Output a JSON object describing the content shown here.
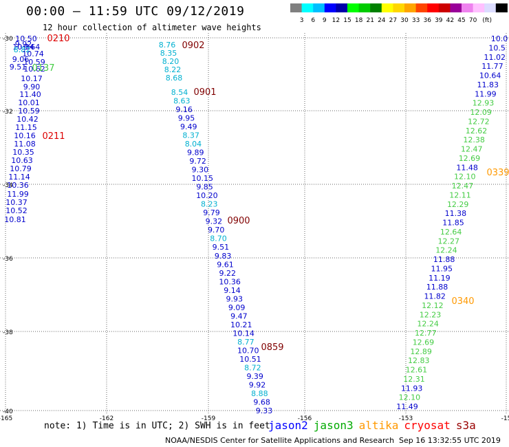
{
  "header": {
    "title": "00:00 – 11:59 UTC 09/12/2019",
    "subtitle": "12 hour collection of altimeter wave heights"
  },
  "colorbar": {
    "colors": [
      "#808080",
      "#00ffff",
      "#00bfff",
      "#0000ff",
      "#0000aa",
      "#00ff00",
      "#00cc00",
      "#008000",
      "#ffff00",
      "#ffd700",
      "#ffa500",
      "#ff4500",
      "#ff0000",
      "#cc0000",
      "#990099",
      "#ee82ee",
      "#ffc0ff",
      "#dcdcff",
      "#000000"
    ],
    "labels": [
      "3",
      "6",
      "9",
      "12",
      "15",
      "18",
      "21",
      "24",
      "27",
      "30",
      "33",
      "36",
      "39",
      "42",
      "45",
      "70",
      "(ft)"
    ]
  },
  "axes": {
    "lat_labels": [
      "-30",
      "-32",
      "-34",
      "-36",
      "-38",
      "-40"
    ],
    "lon_labels": [
      "-165",
      "-162",
      "-159",
      "-156",
      "-153",
      "-15"
    ]
  },
  "tracks": [
    {
      "name": "left-track",
      "points": [
        {
          "t": "10.50",
          "c": "blue"
        },
        {
          "t": "9.92",
          "c": "blue"
        },
        {
          "t": "10.34",
          "c": "blue"
        },
        {
          "t": "9.64",
          "c": "blue"
        },
        {
          "t": "8.82",
          "c": "cyan"
        },
        {
          "t": "10.74",
          "c": "blue"
        },
        {
          "t": "9.06",
          "c": "blue"
        },
        {
          "t": "10.59",
          "c": "blue"
        },
        {
          "t": "9.51",
          "c": "blue"
        },
        {
          "t": "10.62",
          "c": "blue"
        },
        {
          "t": "10.17",
          "c": "blue"
        },
        {
          "t": "9.90",
          "c": "blue"
        },
        {
          "t": "11.40",
          "c": "blue"
        },
        {
          "t": "10.01",
          "c": "blue"
        },
        {
          "t": "10.59",
          "c": "blue"
        },
        {
          "t": "10.42",
          "c": "blue"
        },
        {
          "t": "11.15",
          "c": "blue"
        },
        {
          "t": "10.16",
          "c": "blue"
        },
        {
          "t": "11.08",
          "c": "blue"
        },
        {
          "t": "10.35",
          "c": "blue"
        },
        {
          "t": "10.63",
          "c": "blue"
        },
        {
          "t": "10.79",
          "c": "blue"
        },
        {
          "t": "11.14",
          "c": "blue"
        },
        {
          "t": "10.36",
          "c": "blue"
        },
        {
          "t": "11.99",
          "c": "blue"
        },
        {
          "t": "10.37",
          "c": "blue"
        },
        {
          "t": "10.52",
          "c": "blue"
        },
        {
          "t": "10.81",
          "c": "blue"
        }
      ]
    },
    {
      "name": "middle-track",
      "points": [
        {
          "t": "8.76",
          "c": "cyan"
        },
        {
          "t": "8.35",
          "c": "cyan"
        },
        {
          "t": "8.20",
          "c": "cyan"
        },
        {
          "t": "8.22",
          "c": "cyan"
        },
        {
          "t": "8.68",
          "c": "cyan"
        },
        {
          "t": "8.54",
          "c": "cyan"
        },
        {
          "t": "8.63",
          "c": "cyan"
        },
        {
          "t": "9.16",
          "c": "blue"
        },
        {
          "t": "9.95",
          "c": "blue"
        },
        {
          "t": "9.49",
          "c": "blue"
        },
        {
          "t": "8.37",
          "c": "cyan"
        },
        {
          "t": "8.04",
          "c": "cyan"
        },
        {
          "t": "9.89",
          "c": "blue"
        },
        {
          "t": "9.72",
          "c": "blue"
        },
        {
          "t": "9.30",
          "c": "blue"
        },
        {
          "t": "10.15",
          "c": "blue"
        },
        {
          "t": "9.85",
          "c": "blue"
        },
        {
          "t": "10.20",
          "c": "blue"
        },
        {
          "t": "8.23",
          "c": "cyan"
        },
        {
          "t": "9.79",
          "c": "blue"
        },
        {
          "t": "9.32",
          "c": "blue"
        },
        {
          "t": "9.70",
          "c": "blue"
        },
        {
          "t": "8.70",
          "c": "cyan"
        },
        {
          "t": "9.51",
          "c": "blue"
        },
        {
          "t": "9.83",
          "c": "blue"
        },
        {
          "t": "9.61",
          "c": "blue"
        },
        {
          "t": "9.22",
          "c": "blue"
        },
        {
          "t": "10.36",
          "c": "blue"
        },
        {
          "t": "9.14",
          "c": "blue"
        },
        {
          "t": "9.93",
          "c": "blue"
        },
        {
          "t": "9.09",
          "c": "blue"
        },
        {
          "t": "9.47",
          "c": "blue"
        },
        {
          "t": "10.21",
          "c": "blue"
        },
        {
          "t": "10.14",
          "c": "blue"
        },
        {
          "t": "8.77",
          "c": "cyan"
        },
        {
          "t": "10.70",
          "c": "blue"
        },
        {
          "t": "10.51",
          "c": "blue"
        },
        {
          "t": "8.72",
          "c": "cyan"
        },
        {
          "t": "9.39",
          "c": "blue"
        },
        {
          "t": "9.92",
          "c": "blue"
        },
        {
          "t": "8.88",
          "c": "cyan"
        },
        {
          "t": "9.68",
          "c": "blue"
        },
        {
          "t": "9.33",
          "c": "blue"
        }
      ]
    },
    {
      "name": "right-track",
      "points": [
        {
          "t": "10.0",
          "c": "blue"
        },
        {
          "t": "10.5",
          "c": "blue"
        },
        {
          "t": "11.02",
          "c": "blue"
        },
        {
          "t": "11.77",
          "c": "blue"
        },
        {
          "t": "10.64",
          "c": "blue"
        },
        {
          "t": "11.83",
          "c": "blue"
        },
        {
          "t": "11.99",
          "c": "blue"
        },
        {
          "t": "12.93",
          "c": "green"
        },
        {
          "t": "12.09",
          "c": "green"
        },
        {
          "t": "12.72",
          "c": "green"
        },
        {
          "t": "12.62",
          "c": "green"
        },
        {
          "t": "12.38",
          "c": "green"
        },
        {
          "t": "12.47",
          "c": "green"
        },
        {
          "t": "12.69",
          "c": "green"
        },
        {
          "t": "11.48",
          "c": "blue"
        },
        {
          "t": "12.10",
          "c": "green"
        },
        {
          "t": "12.47",
          "c": "green"
        },
        {
          "t": "12.11",
          "c": "green"
        },
        {
          "t": "12.29",
          "c": "green"
        },
        {
          "t": "11.38",
          "c": "blue"
        },
        {
          "t": "11.85",
          "c": "blue"
        },
        {
          "t": "12.64",
          "c": "green"
        },
        {
          "t": "12.27",
          "c": "green"
        },
        {
          "t": "12.24",
          "c": "green"
        },
        {
          "t": "11.88",
          "c": "blue"
        },
        {
          "t": "11.95",
          "c": "blue"
        },
        {
          "t": "11.19",
          "c": "blue"
        },
        {
          "t": "11.88",
          "c": "blue"
        },
        {
          "t": "11.82",
          "c": "blue"
        },
        {
          "t": "12.12",
          "c": "green"
        },
        {
          "t": "12.23",
          "c": "green"
        },
        {
          "t": "12.24",
          "c": "green"
        },
        {
          "t": "12.77",
          "c": "green"
        },
        {
          "t": "12.69",
          "c": "green"
        },
        {
          "t": "12.89",
          "c": "green"
        },
        {
          "t": "12.83",
          "c": "green"
        },
        {
          "t": "12.61",
          "c": "green"
        },
        {
          "t": "12.31",
          "c": "green"
        },
        {
          "t": "11.93",
          "c": "blue"
        },
        {
          "t": "12.10",
          "c": "green"
        },
        {
          "t": "11.49",
          "c": "blue"
        }
      ]
    }
  ],
  "time_labels": [
    {
      "t": "0210",
      "c": "red"
    },
    {
      "t": "0137",
      "c": "green"
    },
    {
      "t": "0211",
      "c": "red"
    },
    {
      "t": "0902",
      "c": "darkred"
    },
    {
      "t": "0901",
      "c": "darkred"
    },
    {
      "t": "0900",
      "c": "darkred"
    },
    {
      "t": "0859",
      "c": "darkred"
    },
    {
      "t": "0339",
      "c": "orange"
    },
    {
      "t": "0340",
      "c": "orange"
    }
  ],
  "colors": {
    "blue": "#0000cc",
    "cyan": "#00b0d0",
    "green": "#44cc44",
    "red": "#dd0000",
    "darkred": "#800000",
    "orange": "#ff9900",
    "grid": "#666666"
  },
  "footer": {
    "note": "note: 1) Time is in UTC; 2) SWH is in feet",
    "legend": [
      {
        "label": "jason2",
        "color": "#0000ff"
      },
      {
        "label": "jason3",
        "color": "#00aa00"
      },
      {
        "label": "altika",
        "color": "#ff9900"
      },
      {
        "label": "cryosat",
        "color": "#ff0000"
      },
      {
        "label": "s3a",
        "color": "#990000"
      }
    ],
    "credit": "NOAA/NESDIS Center for Satellite Applications and Research",
    "timestamp": "Sep 16 13:32:55 UTC 2019"
  }
}
